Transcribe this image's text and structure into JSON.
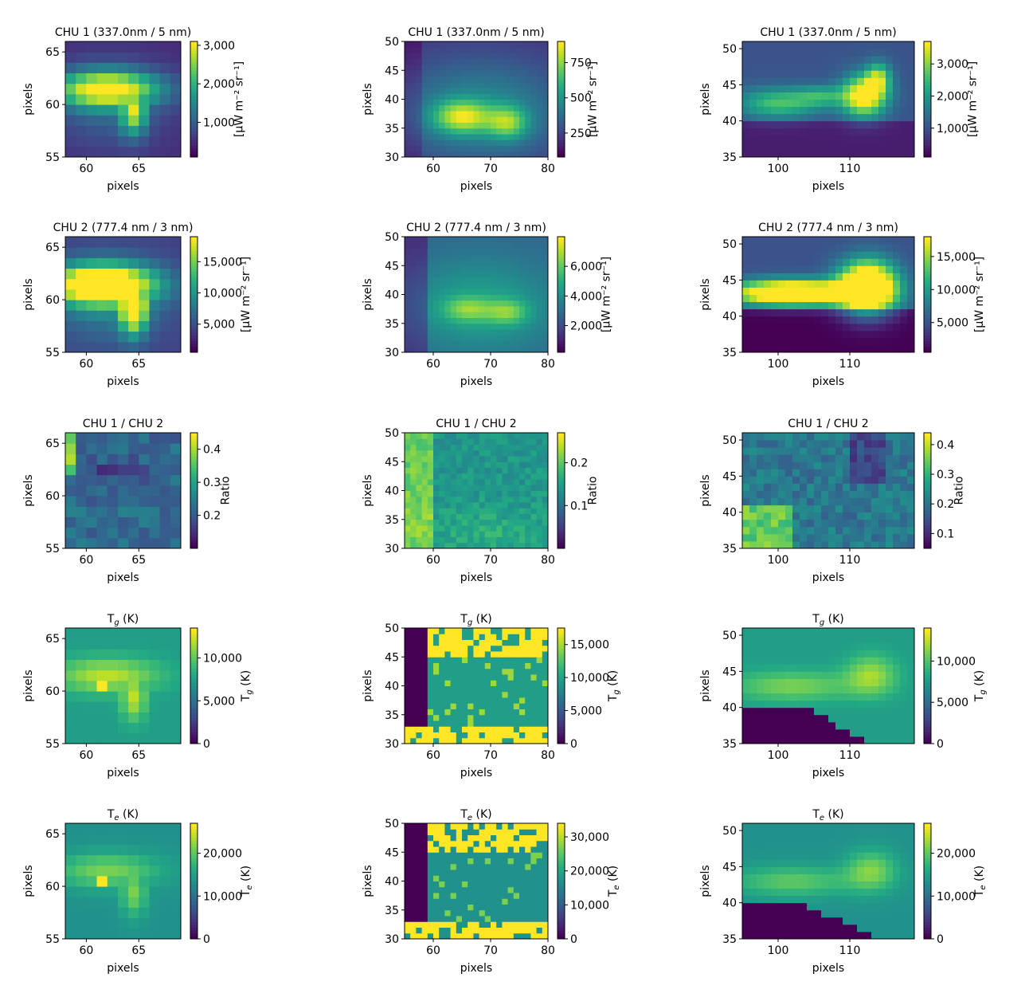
{
  "chart_data": [
    {
      "type": "heatmap",
      "title": "CHU 1 (337.0nm / 5 nm)",
      "xlabel": "pixels",
      "ylabel": "pixels",
      "xlim": [
        58,
        69
      ],
      "ylim": [
        55,
        66
      ],
      "xticks": [
        60,
        65
      ],
      "yticks": [
        55,
        60,
        65
      ],
      "cb_label": "[μW m⁻² sr⁻¹]",
      "cb_range": [
        100,
        3100
      ],
      "cb_ticks": [
        1000,
        2000,
        3000
      ],
      "cb_tick_labels": [
        "1,000",
        "2,000",
        "3,000"
      ]
    },
    {
      "type": "heatmap",
      "title": "CHU 1 (337.0nm / 5 nm)",
      "xlabel": "pixels",
      "ylabel": "pixels",
      "xlim": [
        55,
        80
      ],
      "ylim": [
        30,
        50
      ],
      "xticks": [
        60,
        70,
        80
      ],
      "yticks": [
        30,
        35,
        40,
        45,
        50
      ],
      "cb_label": "[μW m⁻² sr⁻¹]",
      "cb_range": [
        80,
        900
      ],
      "cb_ticks": [
        250,
        500,
        750
      ],
      "cb_tick_labels": [
        "250",
        "500",
        "750"
      ]
    },
    {
      "type": "heatmap",
      "title": "CHU 1 (337.0nm / 5 nm)",
      "xlabel": "pixels",
      "ylabel": "pixels",
      "xlim": [
        95,
        119
      ],
      "ylim": [
        35,
        51
      ],
      "xticks": [
        100,
        110
      ],
      "yticks": [
        35,
        40,
        45,
        50
      ],
      "cb_label": "[μW m⁻² sr⁻¹]",
      "cb_range": [
        100,
        3700
      ],
      "cb_ticks": [
        1000,
        2000,
        3000
      ],
      "cb_tick_labels": [
        "1,000",
        "2,000",
        "3,000"
      ]
    },
    {
      "type": "heatmap",
      "title": "CHU 2 (777.4 nm / 3 nm)",
      "xlabel": "pixels",
      "ylabel": "pixels",
      "xlim": [
        58,
        69
      ],
      "ylim": [
        55,
        66
      ],
      "xticks": [
        60,
        65
      ],
      "yticks": [
        55,
        60,
        65
      ],
      "cb_label": "[μW m⁻² sr⁻¹]",
      "cb_range": [
        500,
        19000
      ],
      "cb_ticks": [
        5000,
        10000,
        15000
      ],
      "cb_tick_labels": [
        "5,000",
        "10,000",
        "15,000"
      ]
    },
    {
      "type": "heatmap",
      "title": "CHU 2 (777.4 nm / 3 nm)",
      "xlabel": "pixels",
      "ylabel": "pixels",
      "xlim": [
        55,
        80
      ],
      "ylim": [
        30,
        50
      ],
      "xticks": [
        60,
        70,
        80
      ],
      "yticks": [
        30,
        35,
        40,
        45,
        50
      ],
      "cb_label": "[μW m⁻² sr⁻¹]",
      "cb_range": [
        200,
        8000
      ],
      "cb_ticks": [
        2000,
        4000,
        6000
      ],
      "cb_tick_labels": [
        "2,000",
        "4,000",
        "6,000"
      ]
    },
    {
      "type": "heatmap",
      "title": "CHU 2 (777.4 nm / 3 nm)",
      "xlabel": "pixels",
      "ylabel": "pixels",
      "xlim": [
        95,
        119
      ],
      "ylim": [
        35,
        51
      ],
      "xticks": [
        100,
        110
      ],
      "yticks": [
        35,
        40,
        45,
        50
      ],
      "cb_label": "[μW m⁻² sr⁻¹]",
      "cb_range": [
        500,
        18000
      ],
      "cb_ticks": [
        5000,
        10000,
        15000
      ],
      "cb_tick_labels": [
        "5,000",
        "10,000",
        "15,000"
      ]
    },
    {
      "type": "heatmap",
      "title": "CHU 1 / CHU 2",
      "xlabel": "pixels",
      "ylabel": "pixels",
      "xlim": [
        58,
        69
      ],
      "ylim": [
        55,
        66
      ],
      "xticks": [
        60,
        65
      ],
      "yticks": [
        55,
        60,
        65
      ],
      "cb_label": "Ratio",
      "cb_range": [
        0.1,
        0.45
      ],
      "cb_ticks": [
        0.2,
        0.3,
        0.4
      ],
      "cb_tick_labels": [
        "0.2",
        "0.3",
        "0.4"
      ]
    },
    {
      "type": "heatmap",
      "title": "CHU 1 / CHU 2",
      "xlabel": "pixels",
      "ylabel": "pixels",
      "xlim": [
        55,
        80
      ],
      "ylim": [
        30,
        50
      ],
      "xticks": [
        60,
        70,
        80
      ],
      "yticks": [
        30,
        35,
        40,
        45,
        50
      ],
      "cb_label": "Ratio",
      "cb_range": [
        0.0,
        0.27
      ],
      "cb_ticks": [
        0.1,
        0.2
      ],
      "cb_tick_labels": [
        "0.1",
        "0.2"
      ]
    },
    {
      "type": "heatmap",
      "title": "CHU 1 / CHU 2",
      "xlabel": "pixels",
      "ylabel": "pixels",
      "xlim": [
        95,
        119
      ],
      "ylim": [
        35,
        51
      ],
      "xticks": [
        100,
        110
      ],
      "yticks": [
        35,
        40,
        45,
        50
      ],
      "cb_label": "Ratio",
      "cb_range": [
        0.05,
        0.44
      ],
      "cb_ticks": [
        0.1,
        0.2,
        0.3,
        0.4
      ],
      "cb_tick_labels": [
        "0.1",
        "0.2",
        "0.3",
        "0.4"
      ]
    },
    {
      "type": "heatmap",
      "title": "T_g (K)",
      "xlabel": "pixels",
      "ylabel": "pixels",
      "xlim": [
        58,
        69
      ],
      "ylim": [
        55,
        66
      ],
      "xticks": [
        60,
        65
      ],
      "yticks": [
        55,
        60,
        65
      ],
      "cb_label": "T_g (K)",
      "cb_range": [
        0,
        13500
      ],
      "cb_ticks": [
        0,
        5000,
        10000
      ],
      "cb_tick_labels": [
        "0",
        "5,000",
        "10,000"
      ]
    },
    {
      "type": "heatmap",
      "title": "T_g (K)",
      "xlabel": "pixels",
      "ylabel": "pixels",
      "xlim": [
        55,
        80
      ],
      "ylim": [
        30,
        50
      ],
      "xticks": [
        60,
        70,
        80
      ],
      "yticks": [
        30,
        35,
        40,
        45,
        50
      ],
      "cb_label": "T_g (K)",
      "cb_range": [
        0,
        17500
      ],
      "cb_ticks": [
        0,
        5000,
        10000,
        15000
      ],
      "cb_tick_labels": [
        "0",
        "5,000",
        "10,000",
        "15,000"
      ]
    },
    {
      "type": "heatmap",
      "title": "T_g (K)",
      "xlabel": "pixels",
      "ylabel": "pixels",
      "xlim": [
        95,
        119
      ],
      "ylim": [
        35,
        51
      ],
      "xticks": [
        100,
        110
      ],
      "yticks": [
        35,
        40,
        45,
        50
      ],
      "cb_label": "T_g (K)",
      "cb_range": [
        0,
        14000
      ],
      "cb_ticks": [
        0,
        5000,
        10000
      ],
      "cb_tick_labels": [
        "0",
        "5,000",
        "10,000"
      ]
    },
    {
      "type": "heatmap",
      "title": "T_e (K)",
      "xlabel": "pixels",
      "ylabel": "pixels",
      "xlim": [
        58,
        69
      ],
      "ylim": [
        55,
        66
      ],
      "xticks": [
        60,
        65
      ],
      "yticks": [
        55,
        60,
        65
      ],
      "cb_label": "T_e (K)",
      "cb_range": [
        0,
        27000
      ],
      "cb_ticks": [
        0,
        10000,
        20000
      ],
      "cb_tick_labels": [
        "0",
        "10,000",
        "20,000"
      ]
    },
    {
      "type": "heatmap",
      "title": "T_e (K)",
      "xlabel": "pixels",
      "ylabel": "pixels",
      "xlim": [
        55,
        80
      ],
      "ylim": [
        30,
        50
      ],
      "xticks": [
        60,
        70,
        80
      ],
      "yticks": [
        30,
        35,
        40,
        45,
        50
      ],
      "cb_label": "T_e (K)",
      "cb_range": [
        0,
        34000
      ],
      "cb_ticks": [
        0,
        10000,
        20000,
        30000
      ],
      "cb_tick_labels": [
        "0",
        "10,000",
        "20,000",
        "30,000"
      ]
    },
    {
      "type": "heatmap",
      "title": "T_e (K)",
      "xlabel": "pixels",
      "ylabel": "pixels",
      "xlim": [
        95,
        119
      ],
      "ylim": [
        35,
        51
      ],
      "xticks": [
        100,
        110
      ],
      "yticks": [
        35,
        40,
        45,
        50
      ],
      "cb_label": "T_e (K)",
      "cb_range": [
        0,
        27000
      ],
      "cb_ticks": [
        0,
        10000,
        20000
      ],
      "cb_tick_labels": [
        "0",
        "10,000",
        "20,000"
      ]
    }
  ]
}
